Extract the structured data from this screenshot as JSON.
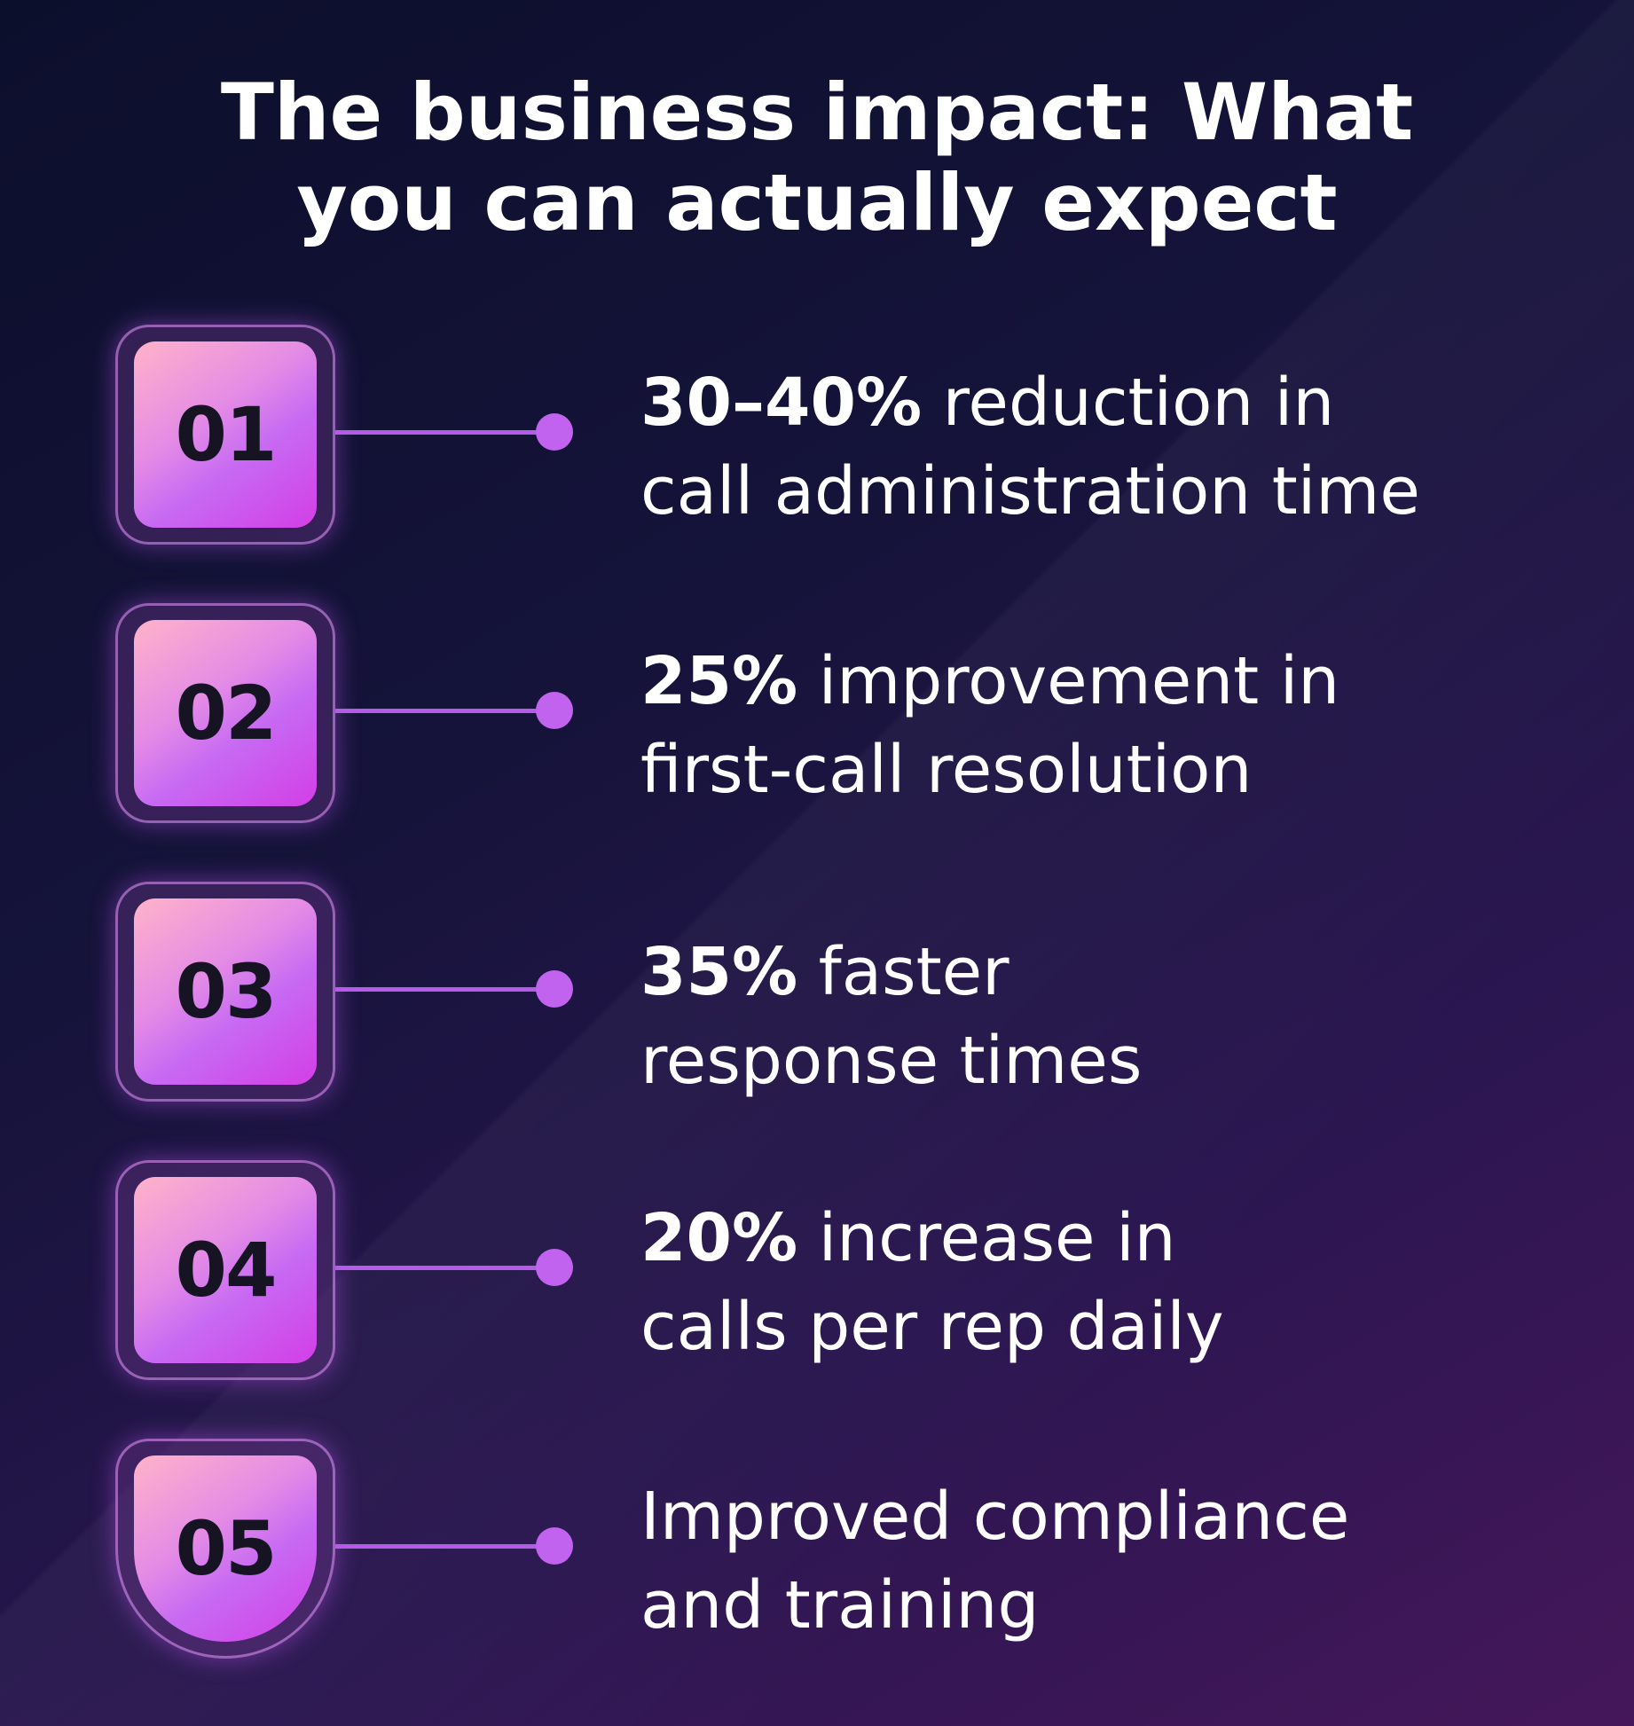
{
  "title": {
    "line1": "The business impact: What",
    "line2": "you can actually expect"
  },
  "items": [
    {
      "number": "01",
      "highlight": "30–40%",
      "rest": " reduction in",
      "line2": "call administration time"
    },
    {
      "number": "02",
      "highlight": "25%",
      "rest": " improvement in",
      "line2": "first-call resolution"
    },
    {
      "number": "03",
      "highlight": "35%",
      "rest": " faster",
      "line2": "response times"
    },
    {
      "number": "04",
      "highlight": "20%",
      "rest": " increase in",
      "line2": "calls per rep daily"
    },
    {
      "number": "05",
      "highlight": "",
      "rest": "Improved compliance",
      "line2": "and training"
    }
  ],
  "colors": {
    "accent": "#c163ef",
    "badge_gradient_start": "#ffb3c9",
    "badge_gradient_end": "#d33ee6",
    "background_start": "#0c0f2c",
    "background_end": "#45175a"
  }
}
